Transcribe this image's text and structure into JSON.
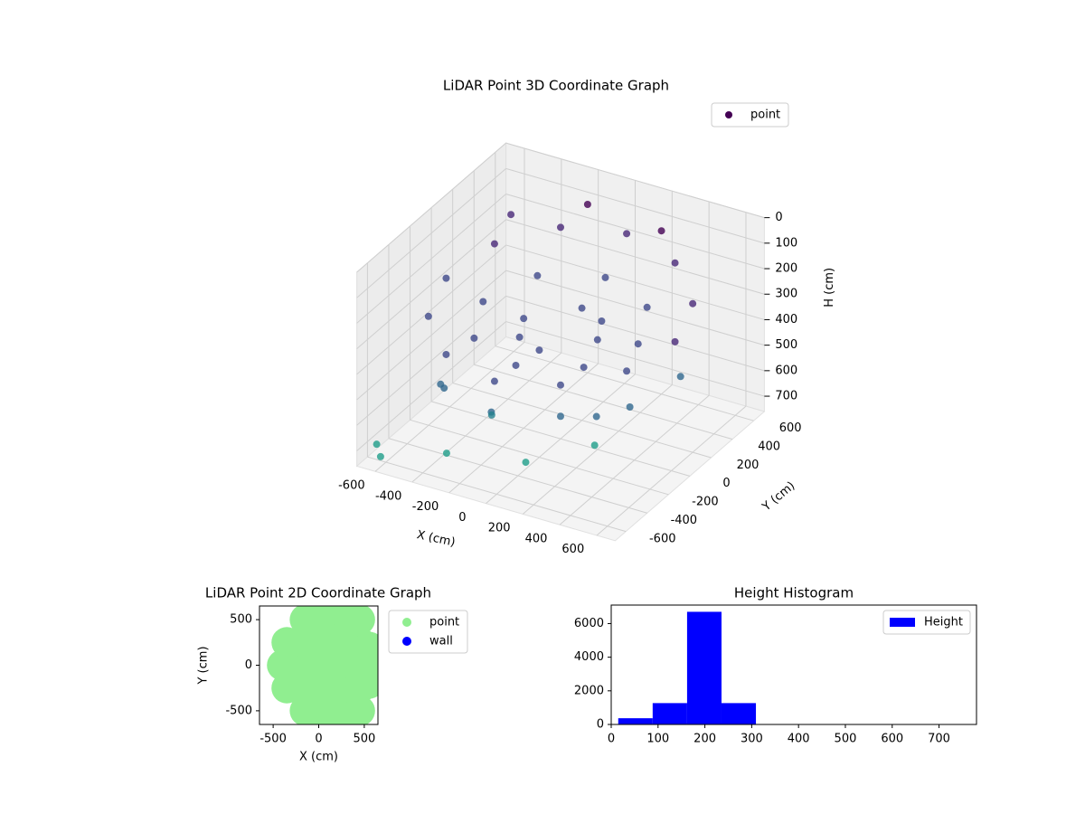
{
  "chart_data": [
    {
      "type": "scatter3d",
      "title": "LiDAR Point 3D Coordinate Graph",
      "xlabel": "X (cm)",
      "ylabel": "Y (cm)",
      "zlabel": "H (cm)",
      "xlim": [
        -700,
        700
      ],
      "ylim": [
        -700,
        700
      ],
      "zlim": [
        0,
        760
      ],
      "z_inverted": true,
      "xticks": [
        -600,
        -400,
        -200,
        0,
        200,
        400,
        600
      ],
      "yticks": [
        -600,
        -400,
        -200,
        0,
        200,
        400,
        600
      ],
      "zticks": [
        0,
        100,
        200,
        300,
        400,
        500,
        600,
        700
      ],
      "colormap": "viridis",
      "legend": "upper right",
      "series": [
        {
          "name": "point",
          "color": "#440154",
          "x": [
            620,
            537,
            310,
            0,
            -310,
            -537,
            -620,
            -537,
            -310,
            0,
            310,
            537,
            420,
            297,
            0,
            -297,
            -420,
            -297,
            0,
            297,
            200,
            0,
            -200,
            0,
            141,
            -141,
            325,
            460,
            563,
            0,
            -325,
            650,
            -650,
            -600,
            -300,
            100,
            -200,
            300,
            -400,
            -200,
            200,
            -500
          ],
          "y": [
            0,
            310,
            537,
            620,
            537,
            310,
            0,
            -310,
            -537,
            -620,
            -537,
            -310,
            0,
            297,
            420,
            297,
            0,
            -297,
            -420,
            -297,
            0,
            200,
            0,
            -200,
            141,
            -141,
            -563,
            -460,
            -325,
            -650,
            -563,
            0,
            -600,
            -650,
            -550,
            -500,
            -300,
            -200,
            -400,
            600,
            600,
            400
          ],
          "z": [
            250,
            230,
            200,
            180,
            190,
            220,
            260,
            280,
            300,
            310,
            290,
            270,
            300,
            290,
            280,
            290,
            310,
            320,
            320,
            310,
            330,
            320,
            330,
            340,
            320,
            340,
            400,
            410,
            400,
            420,
            410,
            380,
            700,
            720,
            680,
            650,
            600,
            650,
            500,
            100,
            120,
            130
          ]
        }
      ]
    },
    {
      "type": "scatter",
      "title": "LiDAR Point 2D Coordinate Graph",
      "xlabel": "X (cm)",
      "ylabel": "Y (cm)",
      "xlim": [
        -650,
        650
      ],
      "ylim": [
        -650,
        650
      ],
      "xticks": [
        -500,
        0,
        500
      ],
      "yticks": [
        -500,
        0,
        500
      ],
      "legend": "outside right",
      "series": [
        {
          "name": "point",
          "color": "#90ee90",
          "x": [
            -150,
            50,
            250,
            450,
            -350,
            -150,
            50,
            250,
            450,
            550,
            -400,
            -200,
            0,
            200,
            400,
            580,
            -350,
            -150,
            50,
            250,
            450,
            550,
            -150,
            50,
            250,
            450,
            0,
            250,
            0,
            250
          ],
          "y": [
            -500,
            -500,
            -500,
            -500,
            -250,
            -250,
            -250,
            -250,
            -250,
            -200,
            0,
            0,
            0,
            0,
            0,
            0,
            250,
            250,
            250,
            250,
            250,
            200,
            500,
            500,
            500,
            500,
            -600,
            -600,
            600,
            600
          ]
        },
        {
          "name": "wall",
          "color": "#0000ff",
          "x": [],
          "y": []
        }
      ]
    },
    {
      "type": "histogram",
      "title": "Height Histogram",
      "name": "Height",
      "color": "#0000ff",
      "bins": [
        15,
        88.5,
        162,
        235.5,
        309,
        382.5,
        456,
        529.5,
        603,
        676.5,
        750
      ],
      "counts": [
        370,
        1270,
        6700,
        1270,
        10,
        0,
        0,
        0,
        0,
        5
      ],
      "xlim": [
        0,
        780
      ],
      "ylim": [
        0,
        7100
      ],
      "xticks": [
        0,
        100,
        200,
        300,
        400,
        500,
        600,
        700
      ],
      "yticks": [
        0,
        2000,
        4000,
        6000
      ],
      "legend": "upper right"
    }
  ]
}
